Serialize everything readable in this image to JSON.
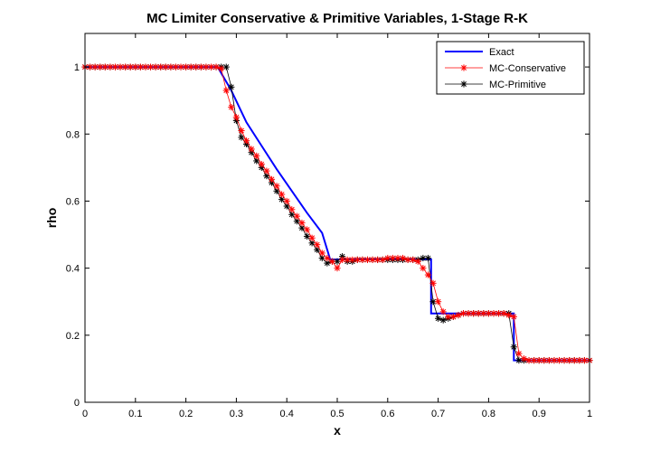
{
  "chart_data": {
    "type": "line",
    "title": "MC Limiter Conservative & Primitive Variables, 1-Stage R-K",
    "xlabel": "x",
    "ylabel": "rho",
    "xlim": [
      0,
      1
    ],
    "ylim": [
      0,
      1.1
    ],
    "xticks": [
      0,
      0.1,
      0.2,
      0.3,
      0.4,
      0.5,
      0.6,
      0.7,
      0.8,
      0.9,
      1
    ],
    "xtick_labels": [
      "0",
      "0.1",
      "0.2",
      "0.3",
      "0.4",
      "0.5",
      "0.6",
      "0.7",
      "0.8",
      "0.9",
      "1"
    ],
    "yticks": [
      0,
      0.2,
      0.4,
      0.6,
      0.8,
      1
    ],
    "ytick_labels": [
      "0",
      "0.2",
      "0.4",
      "0.6",
      "0.8",
      "1"
    ],
    "grid": false,
    "legend_position": "top-right",
    "series": [
      {
        "name": "Exact",
        "color": "#0000ff",
        "style": "line",
        "x": [
          0,
          0.263,
          0.29,
          0.32,
          0.35,
          0.38,
          0.41,
          0.44,
          0.47,
          0.486,
          0.5,
          0.6,
          0.686,
          0.686,
          0.85,
          0.85,
          1
        ],
        "y": [
          1,
          1,
          0.93,
          0.835,
          0.765,
          0.695,
          0.63,
          0.565,
          0.505,
          0.426,
          0.426,
          0.426,
          0.426,
          0.265,
          0.265,
          0.125,
          0.125
        ]
      },
      {
        "name": "MC-Conservative",
        "color": "#ff0000",
        "style": "line-star",
        "x": [
          0,
          0.01,
          0.02,
          0.03,
          0.04,
          0.05,
          0.06,
          0.07,
          0.08,
          0.09,
          0.1,
          0.11,
          0.12,
          0.13,
          0.14,
          0.15,
          0.16,
          0.17,
          0.18,
          0.19,
          0.2,
          0.21,
          0.22,
          0.23,
          0.24,
          0.25,
          0.26,
          0.27,
          0.28,
          0.29,
          0.3,
          0.31,
          0.32,
          0.33,
          0.34,
          0.35,
          0.36,
          0.37,
          0.38,
          0.39,
          0.4,
          0.41,
          0.42,
          0.43,
          0.44,
          0.45,
          0.46,
          0.47,
          0.48,
          0.49,
          0.5,
          0.51,
          0.52,
          0.53,
          0.54,
          0.55,
          0.56,
          0.57,
          0.58,
          0.59,
          0.6,
          0.61,
          0.62,
          0.63,
          0.64,
          0.65,
          0.66,
          0.67,
          0.68,
          0.69,
          0.7,
          0.71,
          0.72,
          0.73,
          0.74,
          0.75,
          0.76,
          0.77,
          0.78,
          0.79,
          0.8,
          0.81,
          0.82,
          0.83,
          0.84,
          0.85,
          0.86,
          0.87,
          0.88,
          0.89,
          0.9,
          0.91,
          0.92,
          0.93,
          0.94,
          0.95,
          0.96,
          0.97,
          0.98,
          0.99,
          1
        ],
        "y": [
          1,
          1,
          1,
          1,
          1,
          1,
          1,
          1,
          1,
          1,
          1,
          1,
          1,
          1,
          1,
          1,
          1,
          1,
          1,
          1,
          1,
          1,
          1,
          1,
          1,
          1,
          1,
          0.995,
          0.93,
          0.88,
          0.85,
          0.81,
          0.78,
          0.755,
          0.735,
          0.71,
          0.69,
          0.665,
          0.645,
          0.62,
          0.6,
          0.575,
          0.555,
          0.535,
          0.515,
          0.49,
          0.47,
          0.445,
          0.43,
          0.42,
          0.4,
          0.425,
          0.425,
          0.425,
          0.425,
          0.425,
          0.425,
          0.425,
          0.425,
          0.425,
          0.43,
          0.43,
          0.43,
          0.43,
          0.425,
          0.425,
          0.42,
          0.4,
          0.38,
          0.355,
          0.3,
          0.27,
          0.255,
          0.255,
          0.26,
          0.265,
          0.265,
          0.265,
          0.265,
          0.265,
          0.265,
          0.265,
          0.265,
          0.265,
          0.26,
          0.255,
          0.145,
          0.13,
          0.125,
          0.125,
          0.125,
          0.125,
          0.125,
          0.125,
          0.125,
          0.125,
          0.125,
          0.125,
          0.125,
          0.125,
          0.125
        ]
      },
      {
        "name": "MC-Primitive",
        "color": "#000000",
        "style": "line-star",
        "x": [
          0,
          0.01,
          0.02,
          0.03,
          0.04,
          0.05,
          0.06,
          0.07,
          0.08,
          0.09,
          0.1,
          0.11,
          0.12,
          0.13,
          0.14,
          0.15,
          0.16,
          0.17,
          0.18,
          0.19,
          0.2,
          0.21,
          0.22,
          0.23,
          0.24,
          0.25,
          0.26,
          0.27,
          0.28,
          0.29,
          0.3,
          0.31,
          0.32,
          0.33,
          0.34,
          0.35,
          0.36,
          0.37,
          0.38,
          0.39,
          0.4,
          0.41,
          0.42,
          0.43,
          0.44,
          0.45,
          0.46,
          0.47,
          0.48,
          0.49,
          0.5,
          0.51,
          0.52,
          0.53,
          0.54,
          0.55,
          0.56,
          0.57,
          0.58,
          0.59,
          0.6,
          0.61,
          0.62,
          0.63,
          0.64,
          0.65,
          0.66,
          0.67,
          0.68,
          0.69,
          0.7,
          0.71,
          0.72,
          0.73,
          0.74,
          0.75,
          0.76,
          0.77,
          0.78,
          0.79,
          0.8,
          0.81,
          0.82,
          0.83,
          0.84,
          0.85,
          0.86,
          0.87,
          0.88,
          0.89,
          0.9,
          0.91,
          0.92,
          0.93,
          0.94,
          0.95,
          0.96,
          0.97,
          0.98,
          0.99,
          1
        ],
        "y": [
          1,
          1,
          1,
          1,
          1,
          1,
          1,
          1,
          1,
          1,
          1,
          1,
          1,
          1,
          1,
          1,
          1,
          1,
          1,
          1,
          1,
          1,
          1,
          1,
          1,
          1,
          1,
          1,
          1,
          0.94,
          0.84,
          0.79,
          0.77,
          0.745,
          0.72,
          0.7,
          0.675,
          0.655,
          0.63,
          0.605,
          0.585,
          0.56,
          0.54,
          0.52,
          0.495,
          0.475,
          0.455,
          0.43,
          0.415,
          0.42,
          0.42,
          0.435,
          0.42,
          0.42,
          0.425,
          0.425,
          0.425,
          0.425,
          0.425,
          0.425,
          0.425,
          0.425,
          0.425,
          0.425,
          0.425,
          0.425,
          0.425,
          0.43,
          0.43,
          0.3,
          0.25,
          0.245,
          0.25,
          0.255,
          0.26,
          0.265,
          0.265,
          0.265,
          0.265,
          0.265,
          0.265,
          0.265,
          0.265,
          0.265,
          0.265,
          0.165,
          0.125,
          0.125,
          0.125,
          0.125,
          0.125,
          0.125,
          0.125,
          0.125,
          0.125,
          0.125,
          0.125,
          0.125,
          0.125,
          0.125,
          0.125
        ]
      }
    ]
  }
}
